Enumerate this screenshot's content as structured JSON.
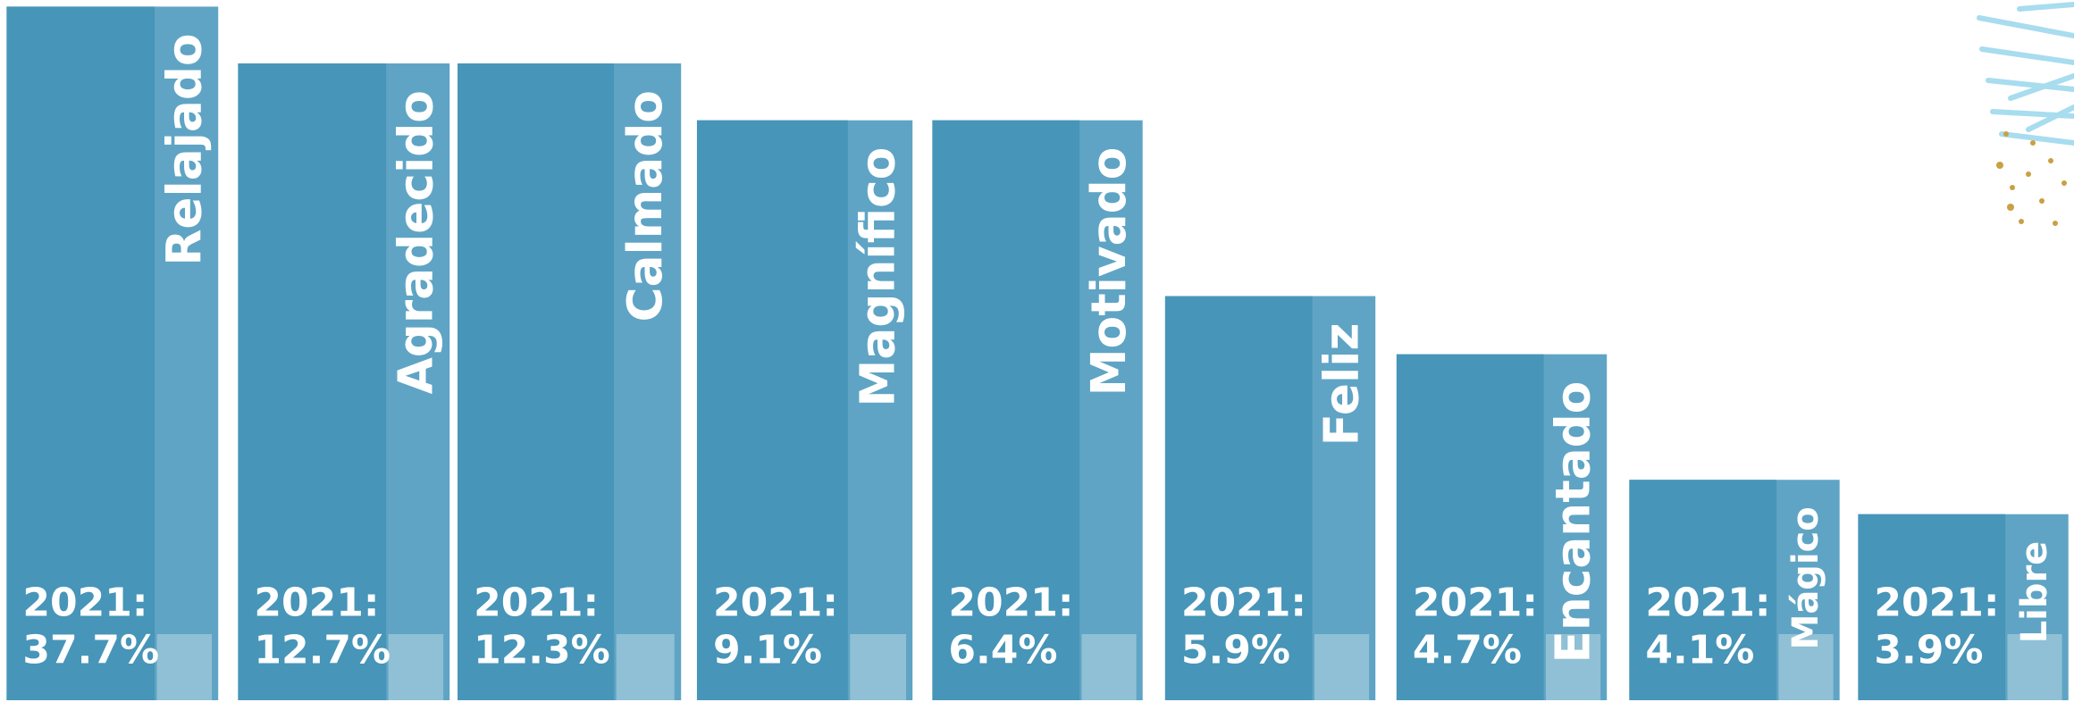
{
  "items": [
    {
      "label": "Relajado",
      "year": "2021:",
      "value": "37.7%"
    },
    {
      "label": "Agradecido",
      "year": "2021:",
      "value": "12.7%"
    },
    {
      "label": "Calmado",
      "year": "2021:",
      "value": "12.3%"
    },
    {
      "label": "Magnífico",
      "year": "2021:",
      "value": "9.1%"
    },
    {
      "label": "Motivado",
      "year": "2021:",
      "value": "6.4%"
    },
    {
      "label": "Feliz",
      "year": "2021:",
      "value": "5.9%"
    },
    {
      "label": "Encantado",
      "year": "2021:",
      "value": "4.7%"
    },
    {
      "label": "Mágico",
      "year": "2021:",
      "value": "4.1%"
    },
    {
      "label": "Libre",
      "year": "2021:",
      "value": "3.9%"
    }
  ]
}
